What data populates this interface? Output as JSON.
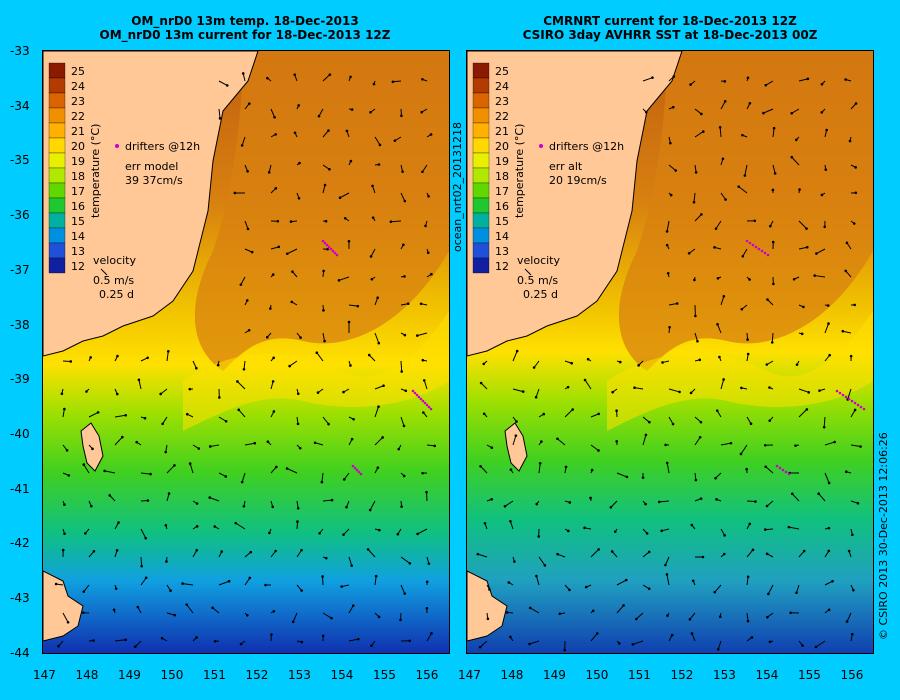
{
  "left_panel": {
    "title_line1": "OM_nrD0 13m temp. 18-Dec-2013",
    "title_line2": "OM_nrD0 13m current for 18-Dec-2013 12Z",
    "drifters_label": "drifters @12h",
    "err_label": "err model",
    "err_values": "39 37cm/s",
    "velocity_label": "velocity",
    "velocity_scale": "0.5 m/s",
    "time_scale": "0.25 d"
  },
  "right_panel": {
    "title_line1": "CMRNRT current for 18-Dec-2013 12Z",
    "title_line2": "CSIRO 3day AVHRR SST at 18-Dec-2013 00Z",
    "drifters_label": "drifters @12h",
    "err_label": "err alt",
    "err_values": "20 19cm/s",
    "velocity_label": "velocity",
    "velocity_scale": "0.5 m/s",
    "time_scale": "0.25 d",
    "side_label": "ocean_nrt02_20131218"
  },
  "colorbar": {
    "label": "temperature (°C)",
    "ticks": [
      "25",
      "24",
      "23",
      "22",
      "21",
      "20",
      "19",
      "18",
      "17",
      "16",
      "15",
      "14",
      "13",
      "12"
    ],
    "colors": [
      "#8c1a00",
      "#b33a00",
      "#d96400",
      "#f09000",
      "#ffb000",
      "#ffd800",
      "#e8f000",
      "#b0e800",
      "#60d800",
      "#20c830",
      "#00b0a0",
      "#0090e0",
      "#2050d8",
      "#1020a0"
    ]
  },
  "axes": {
    "lat_ticks": [
      "-33",
      "-34",
      "-35",
      "-36",
      "-37",
      "-38",
      "-39",
      "-40",
      "-41",
      "-42",
      "-43",
      "-44"
    ],
    "lon_ticks": [
      "147",
      "148",
      "149",
      "150",
      "151",
      "152",
      "153",
      "154",
      "155",
      "156"
    ]
  },
  "credit": "© CSIRO 2013   30-Dec-2013 12:06:26"
}
